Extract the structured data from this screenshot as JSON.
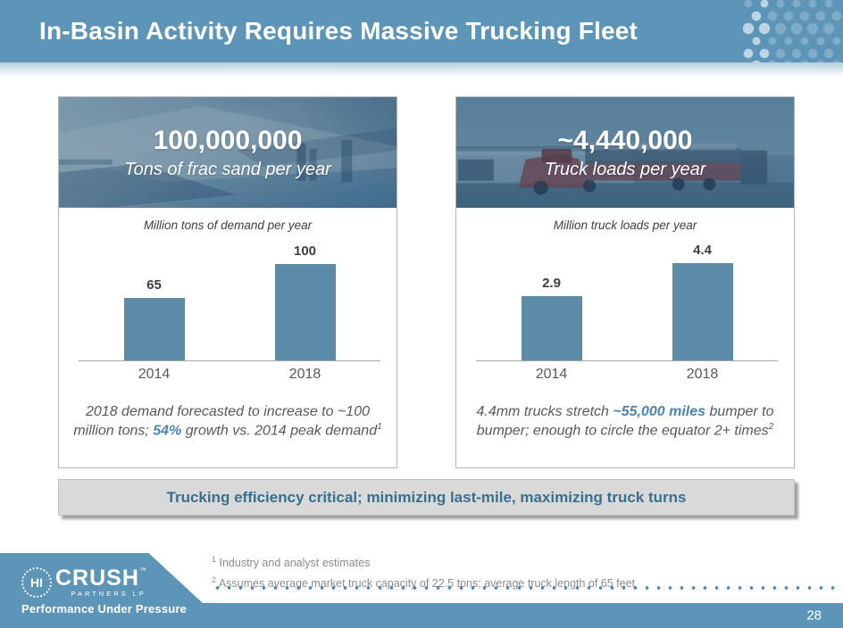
{
  "header": {
    "title": "In-Basin Activity Requires Massive Trucking Fleet",
    "bg_color": "#5d95b8"
  },
  "panels": [
    {
      "headline": "100,000,000",
      "subheadline": "Tons of frac sand per year",
      "caption": {
        "segments": [
          {
            "text": "2018 demand forecasted to increase to ~100 million tons; ",
            "highlight": false
          },
          {
            "text": "54%",
            "highlight": true
          },
          {
            "text": " growth vs. 2014 peak demand",
            "highlight": false
          }
        ],
        "footnote_ref": "1"
      }
    },
    {
      "headline": "~4,440,000",
      "subheadline": "Truck loads per year",
      "caption": {
        "segments": [
          {
            "text": "4.4mm trucks stretch ",
            "highlight": false
          },
          {
            "text": "~55,000 miles",
            "highlight": true
          },
          {
            "text": " bumper to bumper; enough to circle the equator 2+ times",
            "highlight": false
          }
        ],
        "footnote_ref": "2"
      }
    }
  ],
  "chart_data": [
    {
      "type": "bar",
      "title": "Million tons of demand per year",
      "categories": [
        "2014",
        "2018"
      ],
      "values": [
        65,
        100
      ],
      "data_labels": [
        "65",
        "100"
      ],
      "ylim": [
        0,
        115
      ],
      "bar_color": "#5b8ba6",
      "grid": false,
      "legend": false
    },
    {
      "type": "bar",
      "title": "Million truck loads per year",
      "categories": [
        "2014",
        "2018"
      ],
      "values": [
        2.9,
        4.4
      ],
      "data_labels": [
        "2.9",
        "4.4"
      ],
      "ylim": [
        0,
        5
      ],
      "bar_color": "#5b8ba6",
      "grid": false,
      "legend": false
    }
  ],
  "banner": {
    "text": "Trucking efficiency critical; minimizing last-mile, maximizing truck turns"
  },
  "footnotes": [
    {
      "ref": "1",
      "text": "Industry and analyst estimates"
    },
    {
      "ref": "2",
      "text": "Assumes average market truck capacity of 22.5 tons; average truck length of 65 feet"
    }
  ],
  "logo": {
    "hi": "HI",
    "crush": "CRUSH",
    "tm": "TM",
    "partners": "PARTNERS LP",
    "tagline": "Performance Under Pressure"
  },
  "footer": {
    "page_number": "28"
  },
  "colors": {
    "accent_blue": "#5d95b8",
    "bar_blue": "#5b8ba6",
    "highlight_text": "#4a85ad",
    "banner_text": "#38708f",
    "banner_bg": "#d9d9d9"
  }
}
